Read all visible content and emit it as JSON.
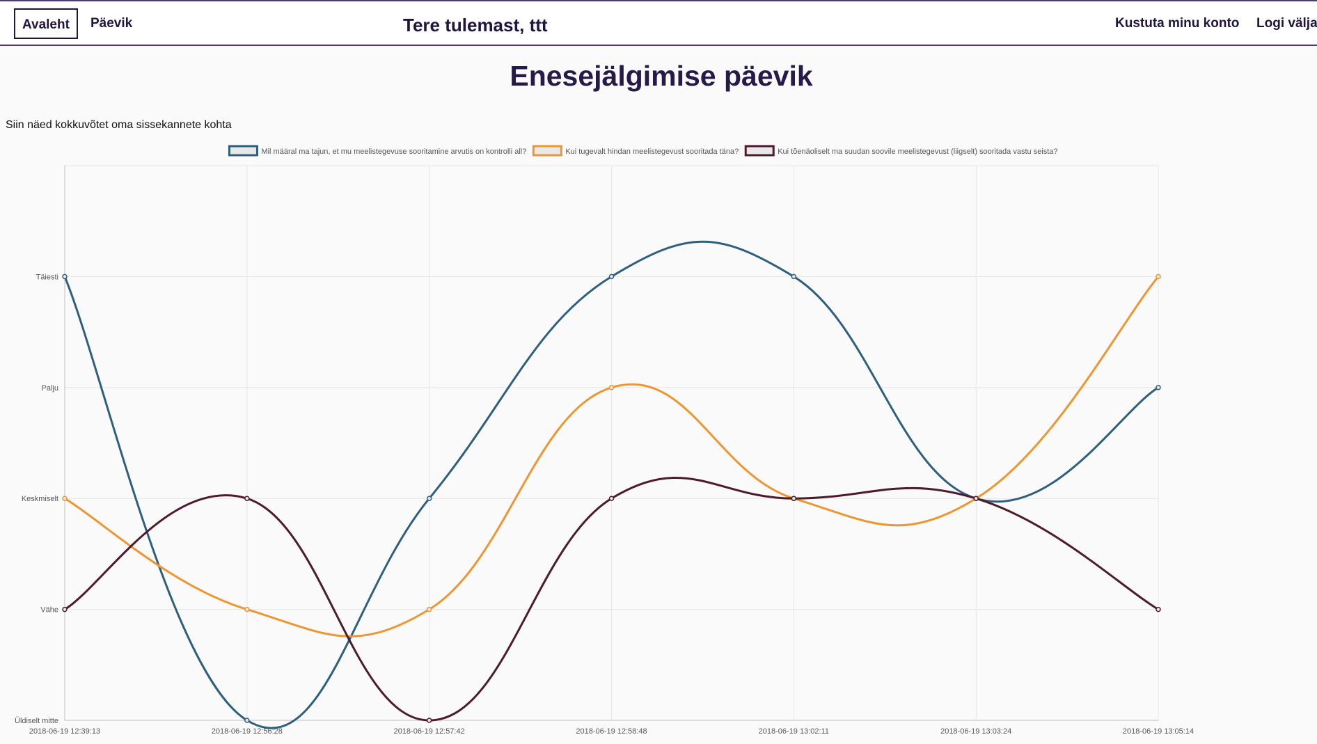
{
  "nav": {
    "home_label": "Avaleht",
    "diary_label": "Päevik",
    "welcome": "Tere tulemast, ttt",
    "delete_label": "Kustuta minu konto",
    "logout_label": "Logi välja"
  },
  "page": {
    "title": "Enesejälgimise päevik",
    "intro": "Siin näed kokkuvõtet oma sissekannete kohta"
  },
  "chart_data": {
    "type": "line",
    "smooth": true,
    "x": [
      "2018-06-19 12:39:13",
      "2018-06-19 12:56:28",
      "2018-06-19 12:57:42",
      "2018-06-19 12:58:48",
      "2018-06-19 13:02:11",
      "2018-06-19 13:03:24",
      "2018-06-19 13:05:14"
    ],
    "y_categories": [
      "Üldiselt mitte",
      "Vähe",
      "Keskmiselt",
      "Palju",
      "Täiesti"
    ],
    "ylim": [
      0,
      5
    ],
    "grid": true,
    "legend_position": "top",
    "series": [
      {
        "name": "Mil määral ma tajun, et mu meelistegevuse sooritamine arvutis on kontrolli all?",
        "color": "#2e5f7e",
        "values": [
          "Täiesti",
          "Üldiselt mitte",
          "Keskmiselt",
          "Täiesti",
          "Täiesti",
          "Keskmiselt",
          "Palju"
        ]
      },
      {
        "name": "Kui tugevalt hindan meelistegevust sooritada täna?",
        "color": "#ee9631",
        "values": [
          "Keskmiselt",
          "Vähe",
          "Vähe",
          "Palju",
          "Keskmiselt",
          "Keskmiselt",
          "Täiesti"
        ]
      },
      {
        "name": "Kui tõenäoliselt ma suudan soovile meelistegevust (liigselt) sooritada vastu seista?",
        "color": "#4e1a2d",
        "values": [
          "Vähe",
          "Keskmiselt",
          "Üldiselt mitte",
          "Keskmiselt",
          "Keskmiselt",
          "Keskmiselt",
          "Vähe"
        ]
      }
    ]
  }
}
